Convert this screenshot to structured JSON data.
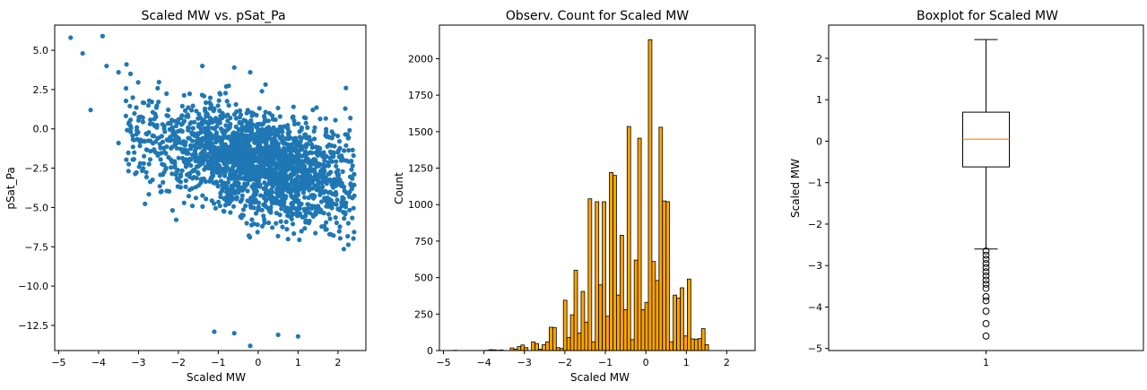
{
  "colors": {
    "scatter": "#1f77b4",
    "hist_fill": "#ffa500",
    "hist_edge": "#000000",
    "median": "#ff7f0e",
    "box": "#000000"
  },
  "chart_data": [
    {
      "type": "scatter",
      "title": "Scaled MW vs. pSat_Pa",
      "xlabel": "Scaled MW",
      "ylabel": "pSat_Pa",
      "xlim": [
        -5.1,
        2.7
      ],
      "ylim": [
        -14.1,
        6.6
      ],
      "xticks": [
        -5,
        -4,
        -3,
        -2,
        -1,
        0,
        1,
        2
      ],
      "yticks": [
        -12.5,
        -10.0,
        -7.5,
        -5.0,
        -2.5,
        0.0,
        2.5,
        5.0
      ],
      "xtick_labels": [
        "−5",
        "−4",
        "−3",
        "−2",
        "−1",
        "0",
        "1",
        "2"
      ],
      "ytick_labels": [
        "−12.5",
        "−10.0",
        "−7.5",
        "−5.0",
        "−2.5",
        "0.0",
        "2.5",
        "5.0"
      ],
      "outliers": [
        {
          "x": -4.7,
          "y": 5.8
        },
        {
          "x": -4.4,
          "y": 4.8
        },
        {
          "x": -3.9,
          "y": 5.9
        },
        {
          "x": -4.2,
          "y": 1.2
        },
        {
          "x": -3.8,
          "y": 4.0
        },
        {
          "x": -3.5,
          "y": 3.6
        },
        {
          "x": -3.3,
          "y": 4.1
        },
        {
          "x": -3.5,
          "y": -0.9
        },
        {
          "x": -3.2,
          "y": 3.5
        },
        {
          "x": -0.6,
          "y": 3.9
        },
        {
          "x": -0.2,
          "y": 3.6
        },
        {
          "x": 2.2,
          "y": 2.6
        },
        {
          "x": -1.4,
          "y": 4.0
        },
        {
          "x": -0.6,
          "y": -13.0
        },
        {
          "x": -0.2,
          "y": -13.8
        },
        {
          "x": 1.0,
          "y": -13.2
        },
        {
          "x": 0.5,
          "y": -13.1
        },
        {
          "x": -1.1,
          "y": -12.9
        }
      ]
    },
    {
      "type": "bar",
      "title": "Observ. Count for Scaled MW",
      "xlabel": "Scaled MW",
      "ylabel": "Count",
      "xlim": [
        -5.1,
        2.7
      ],
      "ylim": [
        0,
        2230
      ],
      "xticks": [
        -5,
        -4,
        -3,
        -2,
        -1,
        0,
        1,
        2
      ],
      "xtick_labels": [
        "−5",
        "−4",
        "−3",
        "−2",
        "−1",
        "0",
        "1",
        "2"
      ],
      "yticks": [
        0,
        250,
        500,
        750,
        1000,
        1250,
        1500,
        1750,
        2000
      ],
      "ytick_labels": [
        "0",
        "250",
        "500",
        "750",
        "1000",
        "1250",
        "1500",
        "1750",
        "2000"
      ],
      "bin_start": -4.75,
      "bin_width": 0.0875,
      "values": [
        2,
        0,
        0,
        0,
        0,
        0,
        0,
        0,
        0,
        2,
        6,
        5,
        2,
        4,
        0,
        0,
        18,
        10,
        27,
        38,
        20,
        0,
        60,
        48,
        10,
        40,
        60,
        160,
        158,
        20,
        14,
        345,
        90,
        245,
        550,
        120,
        405,
        195,
        1040,
        60,
        1020,
        450,
        1020,
        235,
        1220,
        1200,
        380,
        790,
        280,
        1535,
        75,
        620,
        1455,
        280,
        330,
        2130,
        610,
        480,
        1530,
        1025,
        1020,
        60,
        380,
        360,
        430,
        100,
        490,
        80,
        78,
        82,
        150,
        40
      ]
    },
    {
      "type": "box",
      "title": "Boxplot for Scaled MW",
      "ylabel": "Scaled MW",
      "xtick_labels": [
        "1"
      ],
      "ylim": [
        -5.05,
        2.8
      ],
      "yticks": [
        -5,
        -4,
        -3,
        -2,
        -1,
        0,
        1,
        2
      ],
      "ytick_labels": [
        "−5",
        "−4",
        "−3",
        "−2",
        "−1",
        "0",
        "1",
        "2"
      ],
      "whisker_low": -2.6,
      "q1": -0.62,
      "median": 0.05,
      "q3": 0.7,
      "whisker_high": 2.45,
      "fliers": [
        -2.65,
        -2.75,
        -2.85,
        -2.95,
        -3.05,
        -3.15,
        -3.25,
        -3.35,
        -3.45,
        -3.55,
        -3.75,
        -3.85,
        -4.1,
        -4.4,
        -4.7
      ]
    }
  ]
}
